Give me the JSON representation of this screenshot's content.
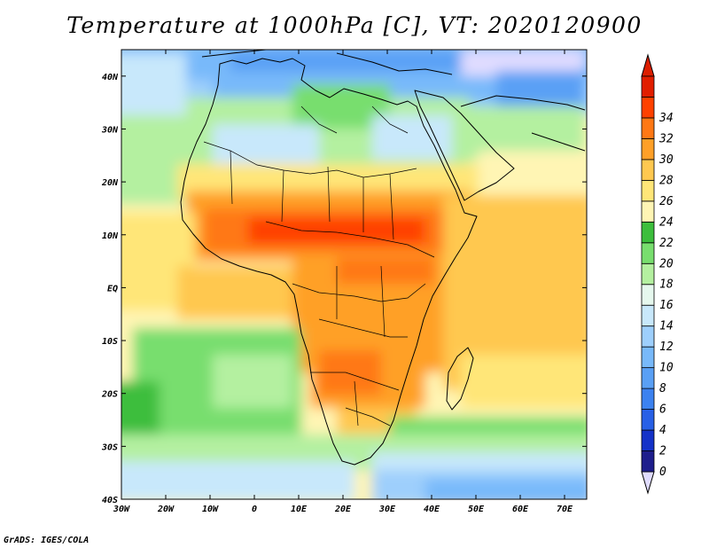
{
  "title": "Temperature at 1000hPa [C], VT: 2020120900",
  "credit": "GrADS: IGES/COLA",
  "map": {
    "projection": "latlon",
    "lon_range": [
      -30,
      75
    ],
    "lat_range": [
      -40,
      45
    ],
    "lon_ticks": [
      {
        "value": -30,
        "label": "30W"
      },
      {
        "value": -20,
        "label": "20W"
      },
      {
        "value": -10,
        "label": "10W"
      },
      {
        "value": 0,
        "label": "0"
      },
      {
        "value": 10,
        "label": "10E"
      },
      {
        "value": 20,
        "label": "20E"
      },
      {
        "value": 30,
        "label": "30E"
      },
      {
        "value": 40,
        "label": "40E"
      },
      {
        "value": 50,
        "label": "50E"
      },
      {
        "value": 60,
        "label": "60E"
      },
      {
        "value": 70,
        "label": "70E"
      }
    ],
    "lat_ticks": [
      {
        "value": 40,
        "label": "40N"
      },
      {
        "value": 30,
        "label": "30N"
      },
      {
        "value": 20,
        "label": "20N"
      },
      {
        "value": 10,
        "label": "10N"
      },
      {
        "value": 0,
        "label": "EQ"
      },
      {
        "value": -10,
        "label": "10S"
      },
      {
        "value": -20,
        "label": "20S"
      },
      {
        "value": -30,
        "label": "30S"
      },
      {
        "value": -40,
        "label": "40S"
      }
    ]
  },
  "colorbar": {
    "levels": [
      "0",
      "2",
      "4",
      "6",
      "8",
      "10",
      "12",
      "14",
      "16",
      "18",
      "20",
      "22",
      "24",
      "26",
      "28",
      "30",
      "32",
      "34"
    ],
    "colors": [
      "#1e1e8c",
      "#1432c8",
      "#2860e6",
      "#3c82f0",
      "#5aa0f5",
      "#78b9fa",
      "#9ecffc",
      "#c8e8fb",
      "#e6f8ee",
      "#b4f0a0",
      "#78de6e",
      "#3cbe3c",
      "#fff5b4",
      "#ffe678",
      "#ffc850",
      "#ffa028",
      "#ff7814",
      "#ff4100",
      "#e11e00"
    ],
    "under_color": "#e0dcff",
    "over_color": "#dc1e00"
  }
}
